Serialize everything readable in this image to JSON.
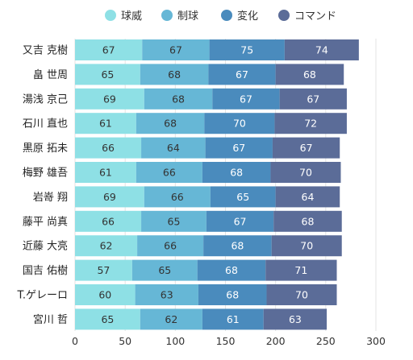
{
  "chart_data": {
    "type": "bar",
    "orientation": "horizontal",
    "stacked": true,
    "categories": [
      "又吉 克樹",
      "畠 世周",
      "湯浅 京己",
      "石川 直也",
      "黒原 拓未",
      "梅野 雄吾",
      "岩嵜 翔",
      "藤平 尚真",
      "近藤 大亮",
      "国吉 佑樹",
      "T.ゲレーロ",
      "宮川 哲"
    ],
    "series": [
      {
        "name": "球威",
        "color": "#8ee0e5",
        "label_color": "#333333",
        "values": [
          67,
          65,
          69,
          61,
          66,
          61,
          69,
          66,
          62,
          57,
          60,
          65
        ]
      },
      {
        "name": "制球",
        "color": "#66b7d6",
        "label_color": "#333333",
        "values": [
          67,
          68,
          68,
          68,
          64,
          66,
          66,
          65,
          66,
          65,
          63,
          62
        ]
      },
      {
        "name": "変化",
        "color": "#4a8bbd",
        "label_color": "#ffffff",
        "values": [
          75,
          67,
          67,
          70,
          67,
          68,
          65,
          67,
          68,
          68,
          68,
          61
        ]
      },
      {
        "name": "コマンド",
        "color": "#5b6c98",
        "label_color": "#ffffff",
        "values": [
          74,
          68,
          67,
          72,
          67,
          70,
          64,
          68,
          70,
          71,
          70,
          63
        ]
      }
    ],
    "xlim": [
      0,
      300
    ],
    "x_ticks": [
      0,
      50,
      100,
      150,
      200,
      250,
      300
    ],
    "grid": "vertical",
    "legend_position": "top",
    "title": "",
    "xlabel": "",
    "ylabel": ""
  }
}
